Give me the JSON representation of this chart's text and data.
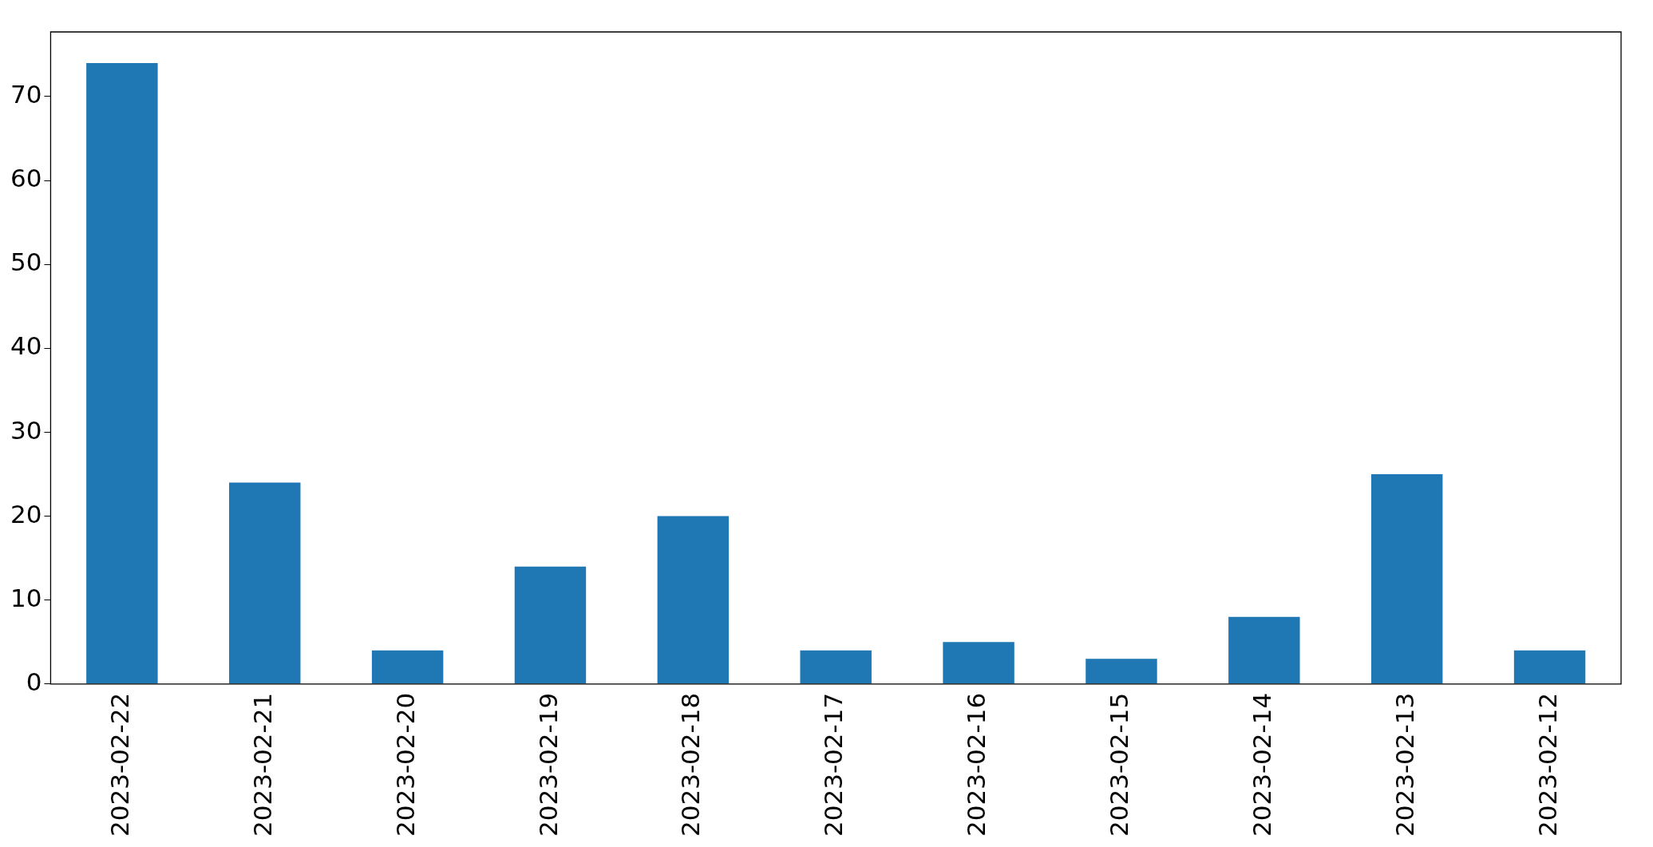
{
  "chart_data": {
    "type": "bar",
    "categories": [
      "2023-02-22",
      "2023-02-21",
      "2023-02-20",
      "2023-02-19",
      "2023-02-18",
      "2023-02-17",
      "2023-02-16",
      "2023-02-15",
      "2023-02-14",
      "2023-02-13",
      "2023-02-12"
    ],
    "values": [
      74,
      24,
      4,
      14,
      20,
      4,
      5,
      3,
      8,
      25,
      4
    ],
    "color": "#1f77b4",
    "ylim": [
      0,
      77.7
    ],
    "yticks": [
      0,
      10,
      20,
      30,
      40,
      50,
      60,
      70
    ],
    "grid": false,
    "legend": false
  }
}
